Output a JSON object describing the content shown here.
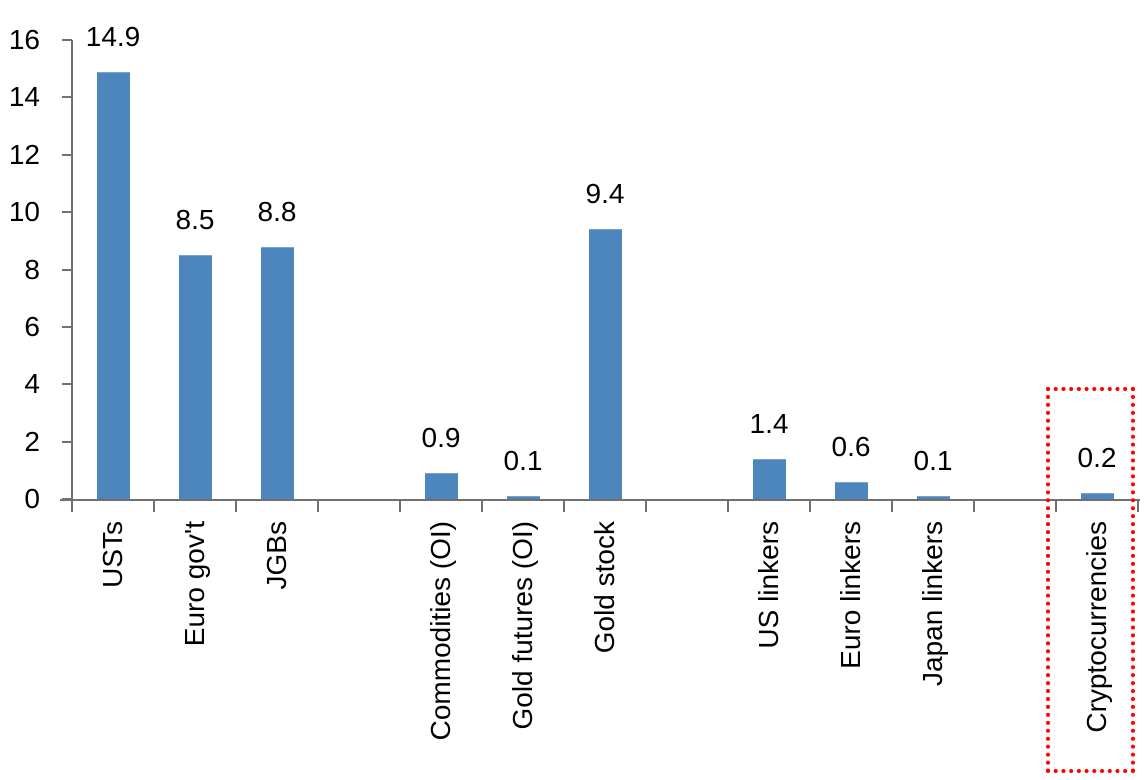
{
  "chart_data": {
    "type": "bar",
    "title": "",
    "categories": [
      "USTs",
      "Euro gov't",
      "JGBs",
      "Commodities (OI)",
      "Gold futures (OI)",
      "Gold stock",
      "US linkers",
      "Euro linkers",
      "Japan linkers",
      "Cryptocurrencies"
    ],
    "values": [
      14.9,
      8.5,
      8.8,
      0.9,
      0.1,
      9.4,
      1.4,
      0.6,
      0.1,
      0.2
    ],
    "data_labels": [
      "14.9",
      "8.5",
      "8.8",
      "0.9",
      "0.1",
      "9.4",
      "1.4",
      "0.6",
      "0.1",
      "0.2"
    ],
    "slots": [
      0,
      1,
      2,
      4,
      5,
      6,
      8,
      9,
      10,
      12
    ],
    "total_slots": 13,
    "xlabel": "",
    "ylabel": "",
    "ylim": [
      0,
      16
    ],
    "yticks": [
      0,
      2,
      4,
      6,
      8,
      10,
      12,
      14,
      16
    ],
    "grid": false,
    "legend": false,
    "bar_color": "#4D86BD",
    "axis_color": "#707070",
    "text_color": "#000000",
    "highlight": {
      "category": "Cryptocurrencies",
      "shape": "dotted-rectangle",
      "color": "#FF0000"
    }
  }
}
